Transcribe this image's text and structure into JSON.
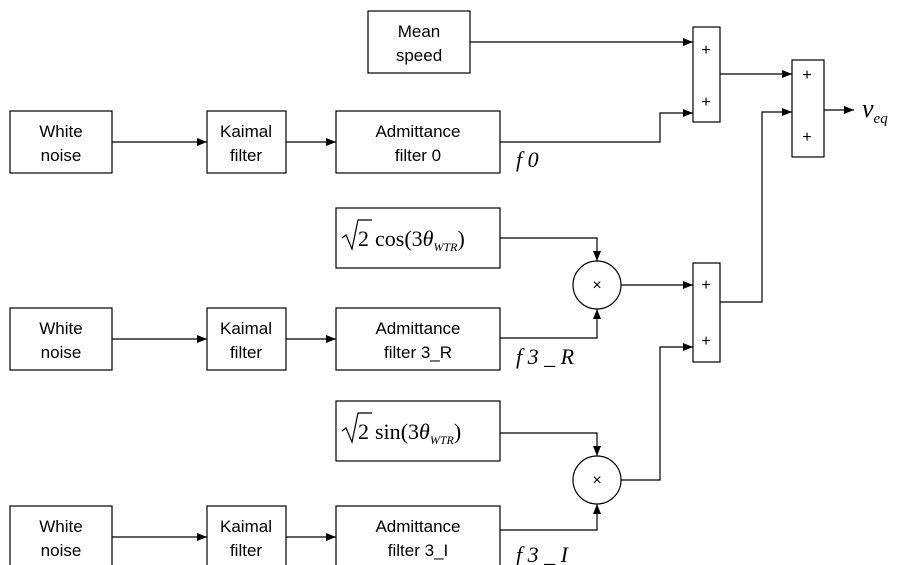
{
  "mean_speed": [
    "Mean",
    "speed"
  ],
  "rows": [
    {
      "source": [
        "White",
        "noise"
      ],
      "filter": [
        "Kaimal",
        "filter"
      ],
      "admittance": [
        "Admittance",
        "filter 0"
      ],
      "signal": "f 0"
    },
    {
      "source": [
        "White",
        "noise"
      ],
      "filter": [
        "Kaimal",
        "filter"
      ],
      "admittance": [
        "Admittance",
        "filter 3_R"
      ],
      "signal": "f 3 _ R"
    },
    {
      "source": [
        "White",
        "noise"
      ],
      "filter": [
        "Kaimal",
        "filter"
      ],
      "admittance": [
        "Admittance",
        "filter 3_I"
      ],
      "signal": "f 3 _ I"
    }
  ],
  "modulators": [
    {
      "radicand": "2",
      "func": "cos",
      "open": "(3",
      "symbol": "θ",
      "subscript": "WTR",
      "close": ")",
      "operator": "×"
    },
    {
      "radicand": "2",
      "func": "sin",
      "open": "(3",
      "symbol": "θ",
      "subscript": "WTR",
      "close": ")",
      "operator": "×"
    }
  ],
  "summers": [
    [
      "+",
      "+"
    ],
    [
      "+",
      "+"
    ],
    [
      "+",
      "+"
    ]
  ],
  "output": {
    "symbol": "v",
    "subscript": "eq"
  }
}
